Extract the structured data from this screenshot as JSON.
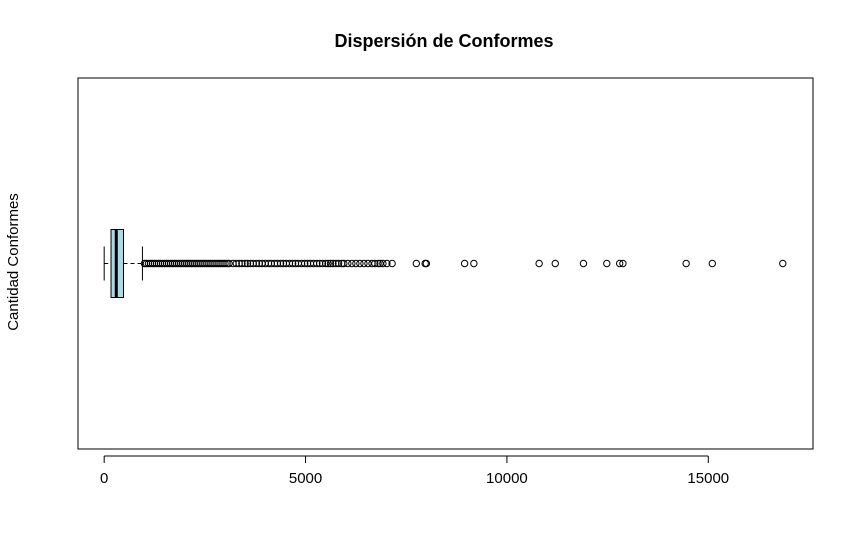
{
  "chart_data": {
    "type": "boxplot",
    "orientation": "horizontal",
    "title": "Dispersión de Conformes",
    "xlabel": "",
    "ylabel": "Cantidad Conformes",
    "xlim": [
      -650,
      17600
    ],
    "x_ticks": [
      0,
      5000,
      10000,
      15000
    ],
    "x_tick_labels": [
      "0",
      "5000",
      "10000",
      "15000"
    ],
    "box": {
      "min": 0,
      "q1": 170,
      "median": 300,
      "q3": 480,
      "whisker_high": 950
    },
    "outliers": [
      1000,
      1050,
      1100,
      1150,
      1200,
      1250,
      1300,
      1350,
      1400,
      1450,
      1500,
      1550,
      1600,
      1650,
      1700,
      1750,
      1800,
      1850,
      1900,
      1950,
      2000,
      2050,
      2100,
      2150,
      2200,
      2250,
      2300,
      2350,
      2400,
      2450,
      2500,
      2550,
      2600,
      2650,
      2700,
      2750,
      2800,
      2850,
      2900,
      2950,
      3000,
      3050,
      3100,
      3200,
      3280,
      3350,
      3420,
      3500,
      3560,
      3630,
      3700,
      3780,
      3850,
      3920,
      4000,
      4080,
      4150,
      4230,
      4300,
      4380,
      4450,
      4520,
      4600,
      4680,
      4750,
      4820,
      4900,
      4980,
      5050,
      5120,
      5200,
      5280,
      5350,
      5420,
      5500,
      5560,
      5620,
      5680,
      5750,
      5820,
      5900,
      5950,
      6050,
      6150,
      6250,
      6350,
      6450,
      6550,
      6650,
      6720,
      6800,
      6850,
      6920,
      7020,
      7150,
      7750,
      7970,
      8000,
      8950,
      9180,
      10800,
      11200,
      11900,
      12480,
      12800,
      12880,
      14450,
      15100,
      16850
    ],
    "colors": {
      "box_fill": "#add8e6",
      "stroke": "#000000"
    },
    "grid": false,
    "legend": "none"
  }
}
